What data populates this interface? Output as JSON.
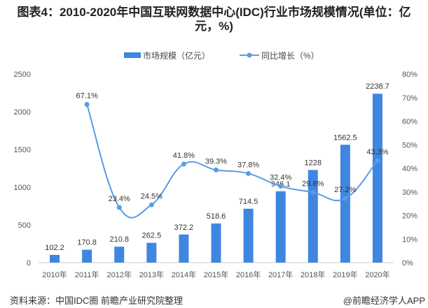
{
  "chart_data": {
    "type": "bar+line",
    "title": "图表4：2010-2020年中国互联网数据中心(IDC)行业市场规模情况(单位：亿元，%)",
    "categories": [
      "2010年",
      "2011年",
      "2012年",
      "2013年",
      "2014年",
      "2015年",
      "2016年",
      "2017年",
      "2018年",
      "2019年",
      "2020年"
    ],
    "series": [
      {
        "name": "市场规模（亿元）",
        "type": "bar",
        "axis": "left",
        "color": "#3f86e0",
        "values": [
          102.2,
          170.8,
          210.8,
          262.5,
          372.2,
          518.6,
          714.5,
          946.1,
          1228,
          1562.5,
          2238.7
        ],
        "labels": [
          "102.2",
          "170.8",
          "210.8",
          "262.5",
          "372.2",
          "518.6",
          "714.5",
          "946.1",
          "1228",
          "1562.5",
          "2238.7"
        ]
      },
      {
        "name": "同比增长（%）",
        "type": "line",
        "axis": "right",
        "color": "#5a9be6",
        "values": [
          null,
          67.1,
          23.4,
          24.5,
          41.8,
          39.3,
          37.8,
          32.4,
          29.8,
          27.2,
          43.3
        ],
        "labels": [
          "",
          "67.1%",
          "23.4%",
          "24.5%",
          "41.8%",
          "39.3%",
          "37.8%",
          "32.4%",
          "29.8%",
          "27.2%",
          "43.3%"
        ]
      }
    ],
    "y_left": {
      "range": [
        0,
        2500
      ],
      "ticks": [
        "0",
        "500",
        "1000",
        "1500",
        "2000",
        "2500"
      ]
    },
    "y_right": {
      "range": [
        0,
        80
      ],
      "ticks": [
        "0%",
        "10%",
        "20%",
        "30%",
        "40%",
        "50%",
        "60%",
        "70%",
        "80%"
      ]
    },
    "legend": "top-center",
    "grid": false
  },
  "footer": {
    "source": "资料来源：中国IDC圈 前瞻产业研究院整理",
    "credit": "@前瞻经济学人APP"
  }
}
